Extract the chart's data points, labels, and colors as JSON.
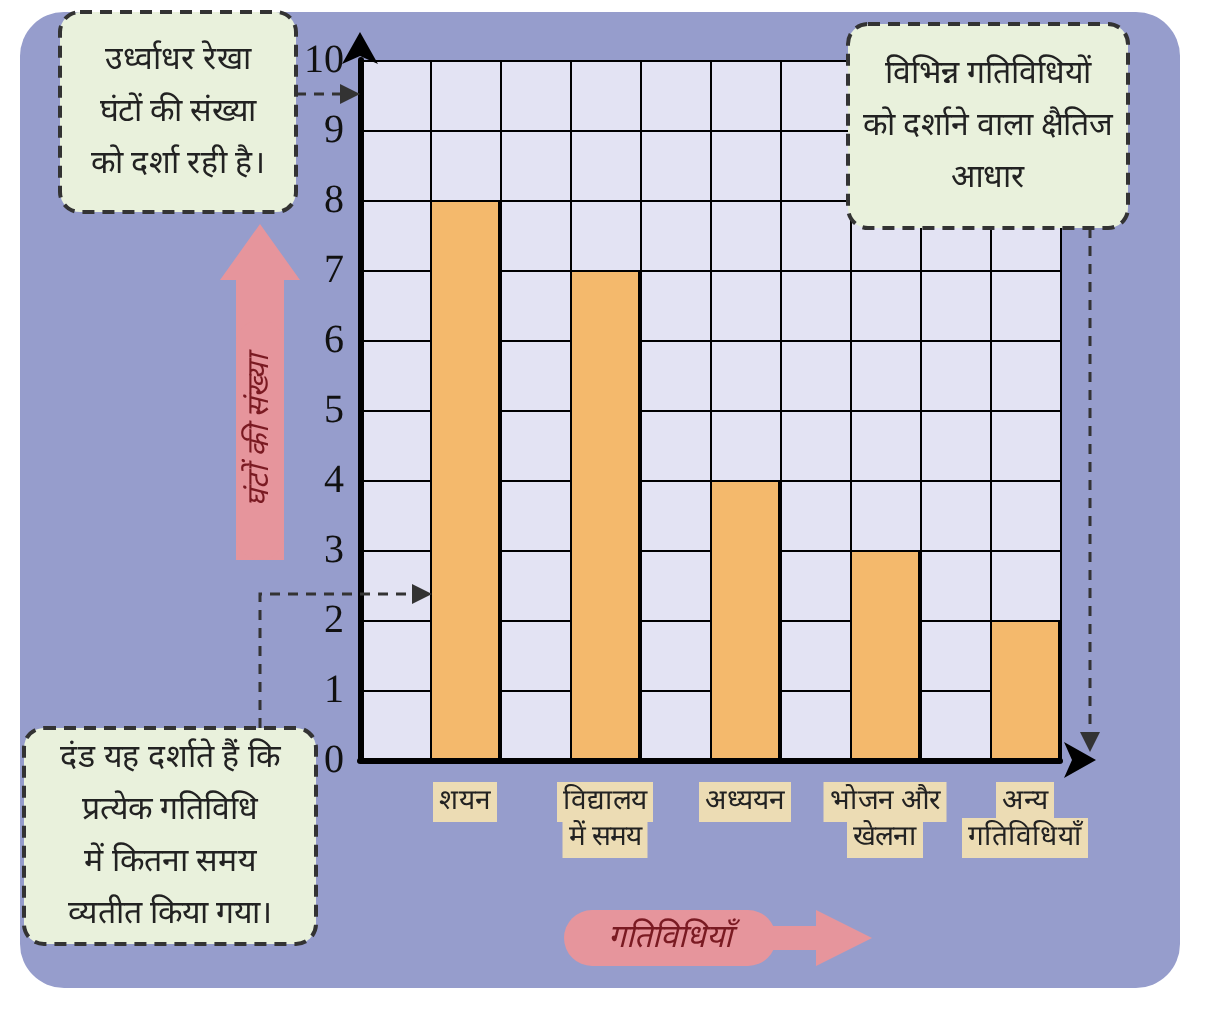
{
  "chart_data": {
    "type": "bar",
    "xlabel": "गतिविधियाँ",
    "ylabel": "घंटों की संख्या",
    "categories": [
      null,
      "शयन",
      null,
      "विद्यालय में समय",
      null,
      "अध्ययन",
      null,
      "भोजन और खेलना",
      null,
      "अन्य गतिविधियाँ"
    ],
    "values": [
      null,
      8,
      null,
      7,
      null,
      4,
      null,
      3,
      null,
      2
    ],
    "color": "#f4b96c",
    "ylim": [
      0,
      10
    ],
    "yticks": [
      0,
      1,
      2,
      3,
      4,
      5,
      6,
      7,
      8,
      9,
      10
    ],
    "grid": true,
    "annotations": [
      "उर्ध्वाधर रेखा\nघंटों की संख्या\nको दर्शा रही है।",
      "विभिन्न गतिविधियों\nको दर्शाने वाला क्षैतिज\nआधार",
      "दंड यह दर्शाते हैं कि\nप्रत्येक गतिविधि\nमें कितना समय\nव्यतीत किया गया।"
    ]
  }
}
